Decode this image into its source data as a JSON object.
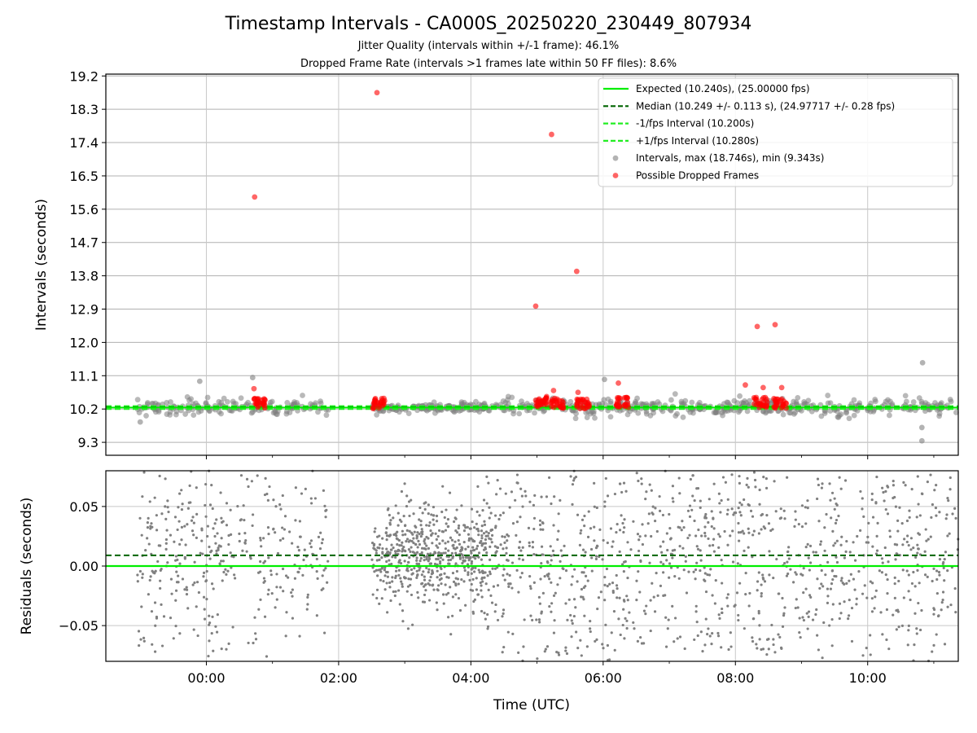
{
  "chart_data": [
    {
      "type": "scatter",
      "title": "Timestamp Intervals - CA000S_20250220_230449_807934",
      "subtitles": [
        "Jitter Quality (intervals within +/-1 frame): 46.1%",
        "Dropped Frame Rate (intervals >1 frames late within 50 FF files): 8.6%"
      ],
      "ylabel": "Intervals (seconds)",
      "ylim": [
        8.95,
        19.25
      ],
      "yticks": [
        "9.3",
        "10.2",
        "11.1",
        "12.0",
        "12.9",
        "13.8",
        "14.7",
        "15.6",
        "16.5",
        "17.4",
        "18.3",
        "19.2"
      ],
      "xlim_hours": [
        -1.52,
        11.37
      ],
      "grid": true,
      "legend_position": "top-right",
      "legend": [
        "Expected (10.240s), (25.00000 fps)",
        "Median (10.249 +/- 0.113 s), (24.97717 +/- 0.28 fps)",
        "-1/fps Interval (10.200s)",
        "+1/fps Interval (10.280s)",
        "Intervals, max (18.746s), min (9.343s)",
        "Possible Dropped Frames"
      ],
      "lines": {
        "expected": 10.24,
        "median": 10.249,
        "minus_one_frame": 10.2,
        "plus_one_frame": 10.28
      },
      "interval_segments_hours": [
        [
          -1.05,
          1.85
        ],
        [
          2.5,
          2.7
        ],
        [
          2.7,
          4.2
        ],
        [
          4.2,
          11.37
        ]
      ],
      "dropped_frame_clusters": [
        {
          "x_hours": 0.8,
          "y": 10.35
        },
        {
          "x_hours": 2.6,
          "y": 10.35
        },
        {
          "x_hours": 5.05,
          "y": 10.4
        },
        {
          "x_hours": 5.3,
          "y": 10.35
        },
        {
          "x_hours": 5.7,
          "y": 10.35
        },
        {
          "x_hours": 6.3,
          "y": 10.38
        },
        {
          "x_hours": 8.38,
          "y": 10.38
        },
        {
          "x_hours": 8.68,
          "y": 10.36
        }
      ],
      "dropped_frame_outliers": [
        {
          "x_hours": 0.73,
          "y": 15.93
        },
        {
          "x_hours": 2.58,
          "y": 18.75
        },
        {
          "x_hours": 5.22,
          "y": 17.62
        },
        {
          "x_hours": 5.6,
          "y": 13.92
        },
        {
          "x_hours": 4.98,
          "y": 12.98
        },
        {
          "x_hours": 8.33,
          "y": 12.43
        },
        {
          "x_hours": 8.6,
          "y": 12.48
        },
        {
          "x_hours": 0.72,
          "y": 10.75
        },
        {
          "x_hours": 5.25,
          "y": 10.7
        },
        {
          "x_hours": 5.62,
          "y": 10.65
        },
        {
          "x_hours": 6.23,
          "y": 10.9
        },
        {
          "x_hours": 8.42,
          "y": 10.78
        },
        {
          "x_hours": 8.7,
          "y": 10.78
        },
        {
          "x_hours": 8.15,
          "y": 10.85
        }
      ],
      "interval_outliers": [
        {
          "x_hours": 10.83,
          "y": 11.45
        },
        {
          "x_hours": 10.82,
          "y": 9.34
        },
        {
          "x_hours": -0.1,
          "y": 10.95
        },
        {
          "x_hours": 6.02,
          "y": 11.0
        },
        {
          "x_hours": 0.7,
          "y": 11.05
        },
        {
          "x_hours": 10.82,
          "y": 9.7
        },
        {
          "x_hours": -1.0,
          "y": 9.85
        }
      ]
    },
    {
      "type": "scatter",
      "ylabel": "Residuals (seconds)",
      "xlabel": "Time (UTC)",
      "ylim": [
        -0.08,
        0.08
      ],
      "yticks": [
        "−0.05",
        "0.00",
        "0.05"
      ],
      "xticks": [
        "00:00",
        "02:00",
        "04:00",
        "06:00",
        "08:00",
        "10:00"
      ],
      "xtick_hours": [
        0,
        2,
        4,
        6,
        8,
        10
      ],
      "grid": true,
      "lines": {
        "expected": 0.0,
        "median": 0.009
      }
    }
  ],
  "colors": {
    "expected": "#00ee00",
    "median": "#006400",
    "fps_interval": "#22ee22",
    "intervals": "#808080",
    "dropped": "#ff0000"
  }
}
